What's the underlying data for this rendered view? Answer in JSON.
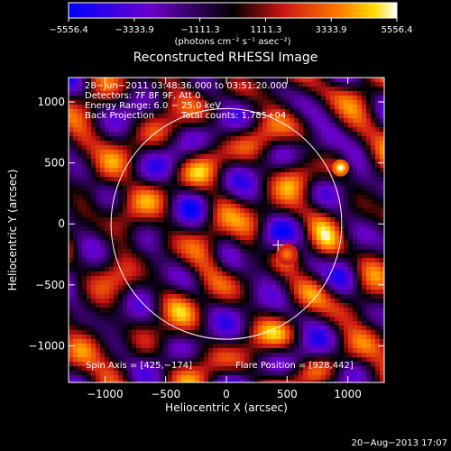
{
  "colorbar": {
    "ticks": [
      "−5556.4",
      "−3333.9",
      "−1111.3",
      "1111.3",
      "3333.9",
      "5556.4"
    ],
    "unit_label": "(photons cm⁻² s⁻¹ asec⁻²)",
    "range": [
      -5556.4,
      5556.4
    ]
  },
  "chart_data": {
    "type": "heatmap",
    "title": "Reconstructed RHESSI Image",
    "xlabel": "Heliocentric X (arcsec)",
    "ylabel": "Heliocentric Y (arcsec)",
    "xlim": [
      -1300,
      1300
    ],
    "ylim": [
      -1300,
      1200
    ],
    "xticks": [
      -1000,
      -500,
      0,
      500,
      1000
    ],
    "yticks": [
      -1000,
      -500,
      0,
      500,
      1000
    ],
    "xtick_labels": [
      "−1000",
      "−500",
      "0",
      "500",
      "1000"
    ],
    "ytick_labels": [
      "−1000",
      "−500",
      "0",
      "500",
      "1000"
    ],
    "info_lines": [
      "28−Jun−2011 03:48:36.000 to 03:51:20.000",
      "Detectors: 7F 8F 9F, Att 0",
      "Energy Range: 6.0 − 25.0 keV"
    ],
    "method_label": "Back Projection",
    "total_counts_label": "Total counts: 1.785+04",
    "spin_axis_label": "Spin Axis = [425,−174]",
    "flare_position_label": "Flare Position = [928,442]",
    "spin_axis": [
      425,
      -174
    ],
    "flare_position": [
      928,
      442
    ],
    "solar_radius_arcsec": 950,
    "blobs": [
      {
        "x": 940,
        "y": 460,
        "r": 70,
        "v": 5556
      },
      {
        "x": 500,
        "y": -250,
        "r": 90,
        "v": 3400
      }
    ]
  },
  "footer_timestamp": "20−Aug−2013 17:07"
}
